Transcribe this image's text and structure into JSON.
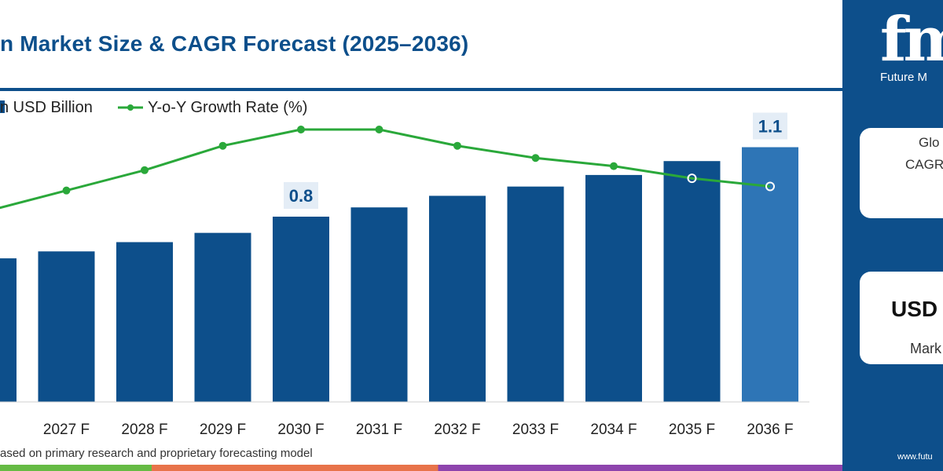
{
  "header": {
    "title": "n Market Size & CAGR Forecast (2025–2036)"
  },
  "legend": {
    "bar_label": "n USD Billion",
    "line_label": "Y-o-Y Growth Rate (%)"
  },
  "footnote": "ased on primary research and proprietary forecasting model",
  "side_panel": {
    "logo_mark": "fm",
    "logo_text": "Future M",
    "card1_line1": "Glo",
    "card1_line2": "CAGR",
    "card2_line1": "USD",
    "card2_line2": "Mark",
    "url": "www.futu"
  },
  "colors": {
    "bar": "#0d4f8b",
    "bar_highlight": "#2e75b6",
    "line": "#2aa83a",
    "accent": "#0d4f8b"
  },
  "chart_data": {
    "type": "bar",
    "categories": [
      "5 E",
      "2027 F",
      "2028 F",
      "2029 F",
      "2030 F",
      "2031 F",
      "2032 F",
      "2033 F",
      "2034 F",
      "2035 F",
      "2036 F"
    ],
    "series": [
      {
        "name": "n USD Billion",
        "type": "bar",
        "values": [
          0.62,
          0.65,
          0.69,
          0.73,
          0.8,
          0.84,
          0.89,
          0.93,
          0.98,
          1.04,
          1.1
        ]
      },
      {
        "name": "Y-o-Y Growth Rate (%)",
        "type": "line",
        "values": [
          4.7,
          5.2,
          5.7,
          6.3,
          6.7,
          6.7,
          6.3,
          6.0,
          5.8,
          5.5,
          5.3
        ]
      }
    ],
    "data_labels": [
      {
        "category": "2030 F",
        "text": "0.8"
      },
      {
        "category": "2036 F",
        "text": "1.1"
      }
    ],
    "ylim": [
      0,
      1.3
    ],
    "y2lim": [
      0,
      8
    ],
    "legend_position": "top-left",
    "grid": false
  }
}
